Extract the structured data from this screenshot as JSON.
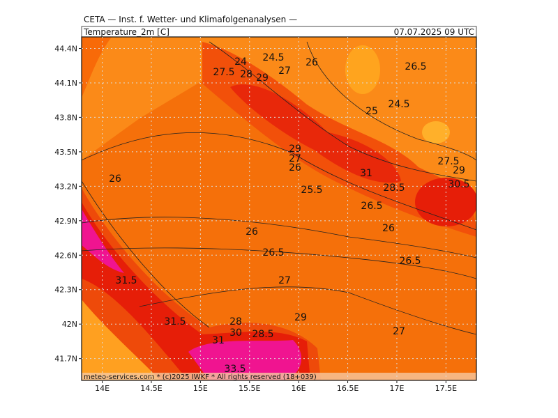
{
  "header": {
    "institute": "CETA — Inst. f. Wetter- und Klimafolgenanalysen —",
    "variable": "Temperature_2m [C]",
    "valid_time": "07.07.2025 09 UTC"
  },
  "map": {
    "lonlim": [
      13.79,
      17.81
    ],
    "latlim": [
      41.51,
      44.5
    ],
    "lon_ticks": [
      {
        "value": 14,
        "label": "14E"
      },
      {
        "value": 14.5,
        "label": "14.5E"
      },
      {
        "value": 15,
        "label": "15E"
      },
      {
        "value": 15.5,
        "label": "15.5E"
      },
      {
        "value": 16,
        "label": "16E"
      },
      {
        "value": 16.5,
        "label": "16.5E"
      },
      {
        "value": 17,
        "label": "17E"
      },
      {
        "value": 17.5,
        "label": "17.5E"
      }
    ],
    "lat_ticks": [
      {
        "value": 44.4,
        "label": "44.4N"
      },
      {
        "value": 44.1,
        "label": "44.1N"
      },
      {
        "value": 43.8,
        "label": "43.8N"
      },
      {
        "value": 43.5,
        "label": "43.5N"
      },
      {
        "value": 43.2,
        "label": "43.2N"
      },
      {
        "value": 42.9,
        "label": "42.9N"
      },
      {
        "value": 42.6,
        "label": "42.6N"
      },
      {
        "value": 42.3,
        "label": "42.3N"
      },
      {
        "value": 42,
        "label": "42N"
      },
      {
        "value": 41.7,
        "label": "41.7N"
      }
    ],
    "contour_labels": [
      24,
      24.5,
      27.5,
      28,
      29,
      27,
      26,
      26.5,
      25,
      24.5,
      29,
      27,
      26,
      31,
      27.5,
      29,
      30.5,
      28.5,
      25.5,
      26.5,
      26,
      26,
      26,
      26.5,
      26.5,
      31.5,
      27,
      31.5,
      28,
      29,
      30,
      28.5,
      27,
      31,
      33.5
    ],
    "grid": true
  },
  "footer": "meteo-services.com * (c)2025 IWKF * All rights reserved (18+039)"
}
